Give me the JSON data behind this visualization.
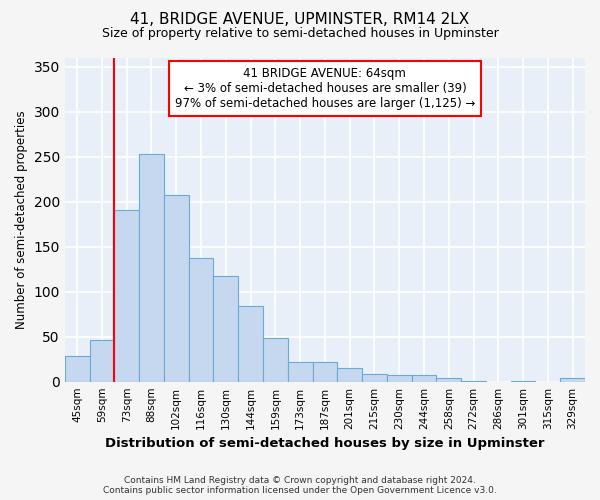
{
  "title1": "41, BRIDGE AVENUE, UPMINSTER, RM14 2LX",
  "title2": "Size of property relative to semi-detached houses in Upminster",
  "xlabel": "Distribution of semi-detached houses by size in Upminster",
  "ylabel": "Number of semi-detached properties",
  "footer1": "Contains HM Land Registry data © Crown copyright and database right 2024.",
  "footer2": "Contains public sector information licensed under the Open Government Licence v3.0.",
  "annotation_line1": "41 BRIDGE AVENUE: 64sqm",
  "annotation_line2": "← 3% of semi-detached houses are smaller (39)",
  "annotation_line3": "97% of semi-detached houses are larger (1,125) →",
  "bar_color": "#c5d8f0",
  "bar_edge_color": "#6aaad4",
  "bins": [
    "45sqm",
    "59sqm",
    "73sqm",
    "88sqm",
    "102sqm",
    "116sqm",
    "130sqm",
    "144sqm",
    "159sqm",
    "173sqm",
    "187sqm",
    "201sqm",
    "215sqm",
    "230sqm",
    "244sqm",
    "258sqm",
    "272sqm",
    "286sqm",
    "301sqm",
    "315sqm",
    "329sqm"
  ],
  "values": [
    28,
    46,
    191,
    253,
    207,
    137,
    117,
    84,
    48,
    22,
    22,
    15,
    9,
    7,
    7,
    4,
    1,
    0,
    1,
    0,
    4
  ],
  "ylim": [
    0,
    360
  ],
  "yticks": [
    0,
    50,
    100,
    150,
    200,
    250,
    300,
    350
  ],
  "background_color": "#e8eff8",
  "grid_color": "#ffffff",
  "red_line_x": 1.5,
  "fig_bg": "#f5f5f5"
}
